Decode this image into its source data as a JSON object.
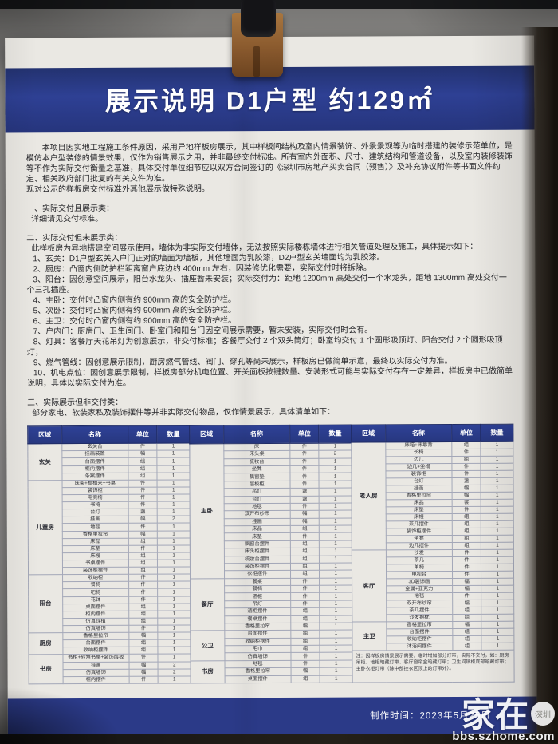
{
  "header": {
    "title": "展示说明 D1户型 约129㎡"
  },
  "body": {
    "intro": "本项目因实地工程施工条件原因，采用异地样板房展示，其中样板间结构及室内情景装饰、外景景观等为临时搭建的装修示范单位，是模仿本户型装修的情景效果，仅作为销售展示之用，并非最终交付标准。所有室内外面积、尺寸、建筑结构和管道设备，以及室内装修装饰等不作为实际交付衡量之基准，具体交付单位细节应以双方合同签订的《深圳市房地产买卖合同（预售）》及补充协议附件等书面文件约定、相关政府部门批复的有关文件为准。",
    "intro2": "现对公示的样板房交付标准外其他展示做特殊说明。",
    "section1": {
      "title": "一、实际交付且展示类：",
      "text": "详细请见交付标准。"
    },
    "section2": {
      "title": "二、实际交付但未展示类：",
      "text": "此样板房为异地搭建空间展示使用，墙体为非实际交付墙体，无法按照实际楼栋墙体进行相关管道处理及施工，具体提示如下：",
      "items": [
        "1、玄关：D1户型玄关入户门正对的墙面为墙板，其他墙面为乳胶漆，D2户型玄关墙面均为乳胶漆。",
        "2、厨房：凸窗内侧防护栏距离窗户底边约 400mm 左右，因装修优化需要，实际交付时将拆除。",
        "3、阳台：因创意空间展示，阳台水龙头、插座暂未安装；实际交付为：距地 1200mm 高处交付一个水龙头，距地 1300mm 高处交付一个三孔插座。",
        "4、主卧：交付时凸窗内侧有约 900mm 高的安全防护栏。",
        "5、次卧：交付时凸窗内侧有约 900mm 高的安全防护栏。",
        "6、主卫：交付时凸窗内侧有约 900mm 高的安全防护栏。",
        "7、户内门：厨房门、卫生间门、卧室门和阳台门因空间展示需要，暂未安装，实际交付时会有。",
        "8、灯具：客餐厅天花吊灯为创意展示，非交付标准；客餐厅交付 2 个双头筒灯；卧室均交付 1 个圆形吸顶灯、阳台交付 2 个圆形吸顶灯；",
        "9、燃气管线：因创意展示限制，厨房燃气管线、阀门、穿孔等尚未展示，样板房已做简单示意，最终以实际交付为准。",
        "10、机电点位：因创意展示限制，样板房部分机电位置、开关面板按键数量、安装形式可能与实际交付存在一定差异，样板房中已做简单说明，具体以实际交付为准。"
      ]
    },
    "section3": {
      "title": "三、实际展示但非交付类：",
      "text": "部分家电、软装家私及装饰摆件等并非实际交付物品，仅作情景展示，具体清单如下："
    }
  },
  "table": {
    "headers": [
      "区域",
      "名称",
      "单位",
      "数量"
    ],
    "columns": [
      {
        "sections": [
          {
            "region": "玄关",
            "rows": [
              [
                "玄关台",
                "件",
                "1"
              ],
              [
                "挂画装置",
                "幅",
                "1"
              ],
              [
                "台面摆件",
                "组",
                "1"
              ],
              [
                "柜内摆件",
                "组",
                "1"
              ],
              [
                "条案摆件",
                "组",
                "1"
              ]
            ]
          },
          {
            "region": "儿童房",
            "rows": [
              [
                "床架+榻榻米+书桌",
                "件",
                "1"
              ],
              [
                "装饰柜",
                "件",
                "1"
              ],
              [
                "电竞椅",
                "件",
                "1"
              ],
              [
                "书椅",
                "件",
                "1"
              ],
              [
                "台灯",
                "盏",
                "1"
              ],
              [
                "挂画",
                "幅",
                "2"
              ],
              [
                "地毯",
                "件",
                "1"
              ],
              [
                "香格里拉帘",
                "幅",
                "1"
              ],
              [
                "床品",
                "组",
                "1"
              ],
              [
                "床垫",
                "件",
                "1"
              ],
              [
                "床幔",
                "组",
                "1"
              ],
              [
                "书桌摆件",
                "组",
                "1"
              ],
              [
                "装饰柜摆件",
                "组",
                "1"
              ]
            ]
          },
          {
            "region": "阳台",
            "rows": [
              [
                "收纳柜",
                "件",
                "1"
              ],
              [
                "餐椅",
                "件",
                "1"
              ],
              [
                "吧椅",
                "件",
                "1"
              ],
              [
                "花钵",
                "件",
                "1"
              ],
              [
                "桌面摆件",
                "组",
                "1"
              ],
              [
                "柜内摆件",
                "组",
                "1"
              ],
              [
                "仿真绿植",
                "组",
                "1"
              ],
              [
                "仿真墙饰",
                "件",
                "1"
              ]
            ]
          },
          {
            "region": "厨房",
            "rows": [
              [
                "香格里拉帘",
                "幅",
                "1"
              ],
              [
                "台面摆件",
                "组",
                "1"
              ],
              [
                "收纳柜摆件",
                "组",
                "1"
              ]
            ]
          },
          {
            "region": "书房",
            "rows": [
              [
                "书柜+转角书桌+装饰层板",
                "件",
                "1"
              ],
              [
                "挂画",
                "幅",
                "2"
              ],
              [
                "仿真墙饰",
                "幅",
                "2"
              ],
              [
                "柜内摆件",
                "件",
                "1"
              ]
            ]
          }
        ]
      },
      {
        "sections": [
          {
            "region": "主卧",
            "rows": [
              [
                "床",
                "件",
                "1"
              ],
              [
                "床头桌",
                "件",
                "2"
              ],
              [
                "梳妆台",
                "件",
                "1"
              ],
              [
                "坐凳",
                "件",
                "1"
              ],
              [
                "飘窗垫",
                "件",
                "1"
              ],
              [
                "层板柜",
                "件",
                "1"
              ],
              [
                "吊灯",
                "盏",
                "1"
              ],
              [
                "台灯",
                "盏",
                "1"
              ],
              [
                "地毯",
                "件",
                "1"
              ],
              [
                "双开布纱帘",
                "幅",
                "1"
              ],
              [
                "挂画",
                "幅",
                "1"
              ],
              [
                "床品",
                "组",
                "1"
              ],
              [
                "床垫",
                "件",
                "1"
              ],
              [
                "飘窗台摆件",
                "组",
                "1"
              ],
              [
                "床头柜摆件",
                "组",
                "1"
              ],
              [
                "梳妆台摆件",
                "组",
                "1"
              ],
              [
                "装饰柜摆件",
                "组",
                "1"
              ],
              [
                "衣柜摆件",
                "组",
                "1"
              ]
            ]
          },
          {
            "region": "餐厅",
            "rows": [
              [
                "餐桌",
                "件",
                "1"
              ],
              [
                "餐椅",
                "件",
                "1"
              ],
              [
                "酒柜",
                "件",
                "1"
              ],
              [
                "吊灯",
                "件",
                "1"
              ],
              [
                "酒柜摆件",
                "组",
                "1"
              ],
              [
                "餐桌摆件",
                "组",
                "1"
              ],
              [
                "香格里拉帘",
                "幅",
                "1"
              ]
            ]
          },
          {
            "region": "公卫",
            "rows": [
              [
                "台面摆件",
                "组",
                "1"
              ],
              [
                "收纳柜摆件",
                "组",
                "1"
              ],
              [
                "毛巾",
                "组",
                "1"
              ],
              [
                "仿真墙饰",
                "件",
                "1"
              ]
            ]
          },
          {
            "region": "书房",
            "rows": [
              [
                "地毯",
                "件",
                "1"
              ],
              [
                "香格里拉帘",
                "幅",
                "1"
              ],
              [
                "桌面摆件",
                "组",
                "1"
              ]
            ]
          }
        ]
      },
      {
        "sections": [
          {
            "region": "老人房",
            "rows": [
              [
                "床箱+床靠背",
                "组",
                "1"
              ],
              [
                "长椅",
                "件",
                "1"
              ],
              [
                "边几",
                "组",
                "1"
              ],
              [
                "边几+坐榻",
                "件",
                "1"
              ],
              [
                "装饰柜",
                "件",
                "1"
              ],
              [
                "台灯",
                "盏",
                "1"
              ],
              [
                "挂画",
                "幅",
                "1"
              ],
              [
                "香格里拉帘",
                "幅",
                "1"
              ],
              [
                "床品",
                "套",
                "1"
              ],
              [
                "床垫",
                "件",
                "1"
              ],
              [
                "床幔",
                "组",
                "1"
              ],
              [
                "茶几摆件",
                "组",
                "1"
              ],
              [
                "装饰柜摆件",
                "组",
                "1"
              ],
              [
                "坐凳",
                "组",
                "1"
              ],
              [
                "边几摆件",
                "组",
                "1"
              ]
            ]
          },
          {
            "region": "客厅",
            "rows": [
              [
                "沙发",
                "件",
                "1"
              ],
              [
                "茶几",
                "件",
                "1"
              ],
              [
                "单椅",
                "件",
                "1"
              ],
              [
                "电视台",
                "件",
                "1"
              ],
              [
                "3D装饰画",
                "幅",
                "1"
              ],
              [
                "金属+亚克力",
                "幅",
                "1"
              ],
              [
                "地毯",
                "件",
                "1"
              ],
              [
                "双开布纱帘",
                "幅",
                "1"
              ],
              [
                "茶几摆件",
                "组",
                "1"
              ],
              [
                "沙发抱枕",
                "组",
                "1"
              ]
            ]
          },
          {
            "region": "主卫",
            "rows": [
              [
                "香格里拉帘",
                "幅",
                "1"
              ],
              [
                "台面摆件",
                "组",
                "1"
              ],
              [
                "收纳柜摆件",
                "组",
                "1"
              ],
              [
                "沐浴间摆件",
                "组",
                "1"
              ]
            ]
          }
        ],
        "note": "注：因样板房情景展示需要，临时增加部分灯带，实际不交付，如：厨房吊柜、地柜暗藏灯带、客厅窗帘盒暗藏灯带；卫生间镜柜底部暗藏灯带；主卧衣柜灯带（除中部挂衣区顶上的灯带外）。"
      }
    ]
  },
  "footer": {
    "made_date": "制作时间：2023年5月25日"
  },
  "watermark": {
    "main": "家在",
    "badge": "深圳",
    "url": "bbs.szhome.com"
  },
  "colors": {
    "header_blue": "#2e4094",
    "table_header_blue": "#2b3d90",
    "footer_blue": "#2b3a88",
    "paper": "#eae8e3"
  }
}
